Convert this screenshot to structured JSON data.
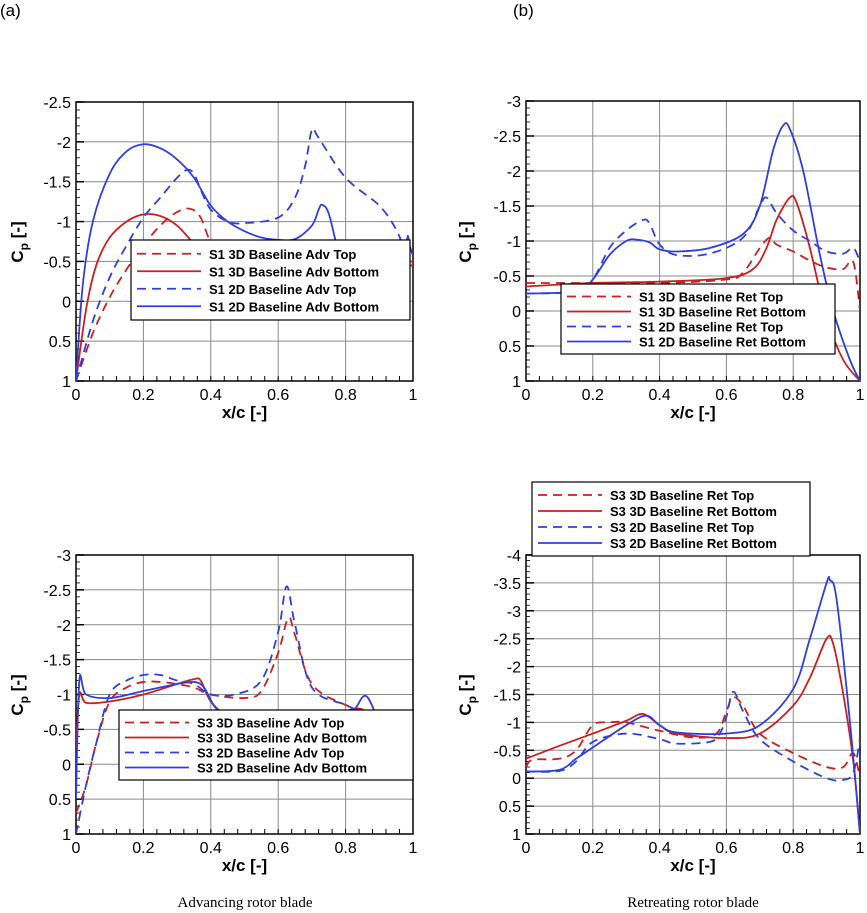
{
  "panel_tags": {
    "a": "(a)",
    "b": "(b)"
  },
  "captions": {
    "left": "Advancing rotor blade",
    "right": "Retreating rotor blade"
  },
  "colors": {
    "3D": "#cc1f1f",
    "2D": "#2f3fe0",
    "grid": "#888888"
  },
  "chart_data": [
    {
      "type": "line",
      "panel": "top-left",
      "xlabel": "x/c [-]",
      "ylabel_main": "C",
      "ylabel_sub": "p",
      "ylabel_unit": " [-]",
      "xlim": [
        0,
        1
      ],
      "ylim": [
        1,
        -2.5
      ],
      "y_reversed": true,
      "grid": true,
      "legend": "bottom-right",
      "xticks": [
        "0",
        "0.2",
        "0.4",
        "0.6",
        "0.8",
        "1"
      ],
      "yticks": [
        "-2.5",
        "-2",
        "-1.5",
        "-1",
        "-0.5",
        "0",
        "0.5",
        "1"
      ],
      "series": [
        {
          "name": "S1 3D Baseline Adv Top",
          "color": "#cc1f1f",
          "dashed": true,
          "x": [
            0,
            0.05,
            0.1,
            0.15,
            0.2,
            0.25,
            0.3,
            0.34,
            0.37,
            0.4,
            0.45,
            0.5,
            0.6,
            0.65,
            0.7,
            0.72,
            0.75,
            0.8,
            0.9,
            1.0
          ],
          "y": [
            1,
            0.4,
            -0.05,
            -0.4,
            -0.7,
            -0.95,
            -1.12,
            -1.16,
            -1.05,
            -0.75,
            -0.58,
            -0.52,
            -0.5,
            -0.55,
            -0.62,
            -0.65,
            -0.52,
            -0.47,
            -0.47,
            -0.5
          ]
        },
        {
          "name": "S1 3D Baseline Adv Bottom",
          "color": "#cc1f1f",
          "dashed": false,
          "x": [
            0,
            0.03,
            0.06,
            0.1,
            0.15,
            0.2,
            0.25,
            0.3,
            0.35,
            0.4,
            0.45,
            0.6,
            0.8,
            1.0
          ],
          "y": [
            1,
            0.1,
            -0.45,
            -0.8,
            -1.0,
            -1.09,
            -1.07,
            -0.95,
            -0.72,
            -0.5,
            -0.44,
            -0.42,
            -0.45,
            -0.45
          ]
        },
        {
          "name": "S1 2D Baseline Adv Top",
          "color": "#2f3fe0",
          "dashed": true,
          "x": [
            0,
            0.05,
            0.1,
            0.15,
            0.2,
            0.25,
            0.3,
            0.33,
            0.35,
            0.37,
            0.4,
            0.45,
            0.5,
            0.6,
            0.65,
            0.68,
            0.7,
            0.72,
            0.8,
            0.9,
            0.95,
            0.98,
            1.0
          ],
          "y": [
            1,
            0.25,
            -0.3,
            -0.7,
            -1.05,
            -1.3,
            -1.55,
            -1.65,
            -1.6,
            -1.4,
            -1.15,
            -1.0,
            -0.98,
            -1.05,
            -1.3,
            -1.7,
            -2.15,
            -2.05,
            -1.55,
            -1.2,
            -0.9,
            -0.6,
            -0.55
          ]
        },
        {
          "name": "S1 2D Baseline Adv Bottom",
          "color": "#2f3fe0",
          "dashed": false,
          "x": [
            0,
            0.02,
            0.05,
            0.1,
            0.15,
            0.2,
            0.25,
            0.3,
            0.35,
            0.4,
            0.45,
            0.5,
            0.55,
            0.6,
            0.65,
            0.7,
            0.72,
            0.73,
            0.75,
            0.78,
            0.8,
            0.9,
            0.95,
            0.98,
            0.985,
            0.99,
            1.0
          ],
          "y": [
            1,
            -0.2,
            -1.0,
            -1.6,
            -1.88,
            -1.97,
            -1.92,
            -1.78,
            -1.55,
            -1.2,
            -1.0,
            -0.88,
            -0.8,
            -0.77,
            -0.78,
            -0.95,
            -1.15,
            -1.21,
            -1.1,
            -0.6,
            -0.46,
            -0.44,
            -0.5,
            -0.75,
            -0.82,
            -0.7,
            -0.57
          ]
        }
      ]
    },
    {
      "type": "line",
      "panel": "top-right",
      "xlabel": "x/c [-]",
      "ylabel_main": "C",
      "ylabel_sub": "p",
      "ylabel_unit": " [-]",
      "xlim": [
        0,
        1
      ],
      "ylim": [
        1,
        -3
      ],
      "y_reversed": true,
      "grid": true,
      "legend": "bottom-right",
      "xticks": [
        "0",
        "0.2",
        "0.4",
        "0.6",
        "0.8",
        "1"
      ],
      "yticks": [
        "-3",
        "-2.5",
        "-2",
        "-1.5",
        "-1",
        "-0.5",
        "0",
        "0.5",
        "1"
      ],
      "series": [
        {
          "name": "S1 3D Baseline Ret Top",
          "color": "#cc1f1f",
          "dashed": true,
          "x": [
            0,
            0.2,
            0.4,
            0.6,
            0.65,
            0.7,
            0.73,
            0.75,
            0.8,
            0.85,
            0.9,
            0.95,
            0.98,
            1.0
          ],
          "y": [
            -0.4,
            -0.4,
            -0.4,
            -0.45,
            -0.55,
            -0.9,
            -1.05,
            -0.95,
            -0.85,
            -0.72,
            -0.62,
            -0.6,
            -0.7,
            0.0
          ]
        },
        {
          "name": "S1 3D Baseline Ret Bottom",
          "color": "#cc1f1f",
          "dashed": false,
          "x": [
            0,
            0.2,
            0.4,
            0.6,
            0.68,
            0.72,
            0.75,
            0.79,
            0.81,
            0.85,
            0.9,
            0.95,
            1.0
          ],
          "y": [
            -0.35,
            -0.4,
            -0.42,
            -0.47,
            -0.6,
            -0.9,
            -1.3,
            -1.62,
            -1.55,
            -0.9,
            0.1,
            0.7,
            1.0
          ]
        },
        {
          "name": "S1 2D Baseline Ret Top",
          "color": "#2f3fe0",
          "dashed": true,
          "x": [
            0,
            0.15,
            0.2,
            0.25,
            0.3,
            0.35,
            0.37,
            0.4,
            0.45,
            0.55,
            0.65,
            0.7,
            0.72,
            0.75,
            0.8,
            0.85,
            0.9,
            0.95,
            0.98,
            1.0
          ],
          "y": [
            -0.25,
            -0.28,
            -0.45,
            -0.9,
            -1.15,
            -1.3,
            -1.25,
            -0.95,
            -0.8,
            -0.82,
            -1.05,
            -1.5,
            -1.62,
            -1.4,
            -1.15,
            -1.0,
            -0.85,
            -0.82,
            -0.9,
            -0.7
          ]
        },
        {
          "name": "S1 2D Baseline Ret Bottom",
          "color": "#2f3fe0",
          "dashed": false,
          "x": [
            0,
            0.15,
            0.2,
            0.25,
            0.3,
            0.33,
            0.37,
            0.4,
            0.45,
            0.55,
            0.65,
            0.7,
            0.74,
            0.77,
            0.79,
            0.83,
            0.88,
            0.92,
            0.97,
            1.0
          ],
          "y": [
            -0.25,
            -0.28,
            -0.45,
            -0.8,
            -1.0,
            -1.02,
            -0.98,
            -0.88,
            -0.85,
            -0.9,
            -1.1,
            -1.5,
            -2.3,
            -2.65,
            -2.6,
            -2.0,
            -0.8,
            0.0,
            0.7,
            1.0
          ]
        }
      ]
    },
    {
      "type": "line",
      "panel": "bottom-left",
      "xlabel": "x/c [-]",
      "ylabel_main": "C",
      "ylabel_sub": "p",
      "ylabel_unit": " [-]",
      "xlim": [
        0,
        1
      ],
      "ylim": [
        1,
        -3
      ],
      "y_reversed": true,
      "grid": true,
      "legend": "bottom-right",
      "xticks": [
        "0",
        "0.2",
        "0.4",
        "0.6",
        "0.8",
        "1"
      ],
      "yticks": [
        "-3",
        "-2.5",
        "-2",
        "-1.5",
        "-1",
        "-0.5",
        "0",
        "0.5",
        "1"
      ],
      "series": [
        {
          "name": "S3 3D Baseline Adv Top",
          "color": "#cc1f1f",
          "dashed": true,
          "x": [
            0,
            0.03,
            0.06,
            0.1,
            0.15,
            0.2,
            0.25,
            0.3,
            0.35,
            0.4,
            0.5,
            0.55,
            0.6,
            0.63,
            0.65,
            0.7,
            0.8,
            0.9,
            0.95,
            1.0
          ],
          "y": [
            0.7,
            0.3,
            -0.3,
            -0.9,
            -1.1,
            -1.18,
            -1.18,
            -1.15,
            -1.1,
            -1.0,
            -0.95,
            -1.05,
            -1.6,
            -2.1,
            -1.85,
            -1.15,
            -0.85,
            -0.7,
            -0.5,
            -0.3
          ]
        },
        {
          "name": "S3 3D Baseline Adv Bottom",
          "color": "#cc1f1f",
          "dashed": false,
          "x": [
            0,
            0.01,
            0.03,
            0.1,
            0.2,
            0.3,
            0.35,
            0.37,
            0.4,
            0.45,
            0.55,
            0.65,
            0.75,
            0.83,
            0.87,
            0.92,
            0.95,
            0.98,
            1.0
          ],
          "y": [
            -0.2,
            -1.0,
            -0.88,
            -0.9,
            -1.0,
            -1.15,
            -1.22,
            -1.2,
            -0.9,
            -0.7,
            -0.55,
            -0.5,
            -0.65,
            -0.8,
            -0.7,
            -0.35,
            -0.28,
            -0.25,
            -0.2
          ]
        },
        {
          "name": "S3 2D Baseline Adv Top",
          "color": "#2f3fe0",
          "dashed": true,
          "x": [
            0,
            0.03,
            0.06,
            0.1,
            0.15,
            0.2,
            0.25,
            0.3,
            0.35,
            0.4,
            0.47,
            0.55,
            0.6,
            0.625,
            0.65,
            0.7,
            0.8,
            0.9,
            0.97,
            1.0
          ],
          "y": [
            1.0,
            0.3,
            -0.3,
            -1.0,
            -1.2,
            -1.28,
            -1.28,
            -1.2,
            -1.15,
            -1.0,
            -1.0,
            -1.2,
            -1.9,
            -2.55,
            -2.0,
            -1.1,
            -0.85,
            -0.65,
            -0.65,
            -0.7
          ]
        },
        {
          "name": "S3 2D Baseline Adv Bottom",
          "color": "#2f3fe0",
          "dashed": false,
          "x": [
            0,
            0.01,
            0.03,
            0.1,
            0.2,
            0.3,
            0.35,
            0.38,
            0.42,
            0.5,
            0.6,
            0.65,
            0.75,
            0.82,
            0.86,
            0.9,
            0.93,
            0.97,
            1.0
          ],
          "y": [
            0.5,
            -1.2,
            -1.0,
            -0.95,
            -1.05,
            -1.15,
            -1.18,
            -1.1,
            -0.78,
            -0.6,
            -0.45,
            -0.4,
            -0.55,
            -0.75,
            -0.98,
            -0.6,
            -0.35,
            -0.35,
            -0.6
          ]
        }
      ]
    },
    {
      "type": "line",
      "panel": "bottom-right",
      "xlabel": "x/c [-]",
      "ylabel_main": "C",
      "ylabel_sub": "p",
      "ylabel_unit": " [-]",
      "xlim": [
        0,
        1
      ],
      "ylim": [
        1,
        -4
      ],
      "y_reversed": true,
      "grid": true,
      "legend": "top-left",
      "xticks": [
        "0",
        "0.2",
        "0.4",
        "0.6",
        "0.8",
        "1"
      ],
      "yticks": [
        "-4",
        "-3.5",
        "-3",
        "-2.5",
        "-2",
        "-1.5",
        "-1",
        "-0.5",
        "0",
        "0.5",
        "1"
      ],
      "series": [
        {
          "name": "S3 3D Baseline Ret Top",
          "color": "#cc1f1f",
          "dashed": true,
          "x": [
            0,
            0.02,
            0.1,
            0.15,
            0.2,
            0.25,
            0.3,
            0.4,
            0.5,
            0.57,
            0.6,
            0.62,
            0.65,
            0.7,
            0.8,
            0.9,
            0.95,
            0.98,
            1.0
          ],
          "y": [
            -0.2,
            -0.33,
            -0.35,
            -0.5,
            -0.95,
            -1.0,
            -1.0,
            -0.85,
            -0.73,
            -0.8,
            -1.2,
            -1.45,
            -1.3,
            -0.8,
            -0.45,
            -0.2,
            -0.2,
            -0.45,
            0.0
          ]
        },
        {
          "name": "S3 3D Baseline Ret Bottom",
          "color": "#cc1f1f",
          "dashed": false,
          "x": [
            0,
            0.1,
            0.2,
            0.3,
            0.35,
            0.4,
            0.45,
            0.6,
            0.7,
            0.8,
            0.85,
            0.9,
            0.92,
            0.95,
            0.98,
            1.0
          ],
          "y": [
            -0.35,
            -0.58,
            -0.8,
            -1.03,
            -1.15,
            -0.95,
            -0.8,
            -0.72,
            -0.8,
            -1.3,
            -1.8,
            -2.5,
            -2.4,
            -1.5,
            -0.3,
            1.0
          ]
        },
        {
          "name": "S3 2D Baseline Ret Top",
          "color": "#2f3fe0",
          "dashed": true,
          "x": [
            0,
            0.1,
            0.15,
            0.2,
            0.3,
            0.4,
            0.45,
            0.55,
            0.58,
            0.6,
            0.62,
            0.65,
            0.7,
            0.8,
            0.9,
            0.95,
            0.98,
            1.0
          ],
          "y": [
            -0.12,
            -0.13,
            -0.3,
            -0.65,
            -0.8,
            -0.7,
            -0.62,
            -0.65,
            -0.8,
            -1.1,
            -1.55,
            -1.2,
            -0.7,
            -0.3,
            0.0,
            0.03,
            -0.1,
            -0.7
          ]
        },
        {
          "name": "S3 2D Baseline Ret Bottom",
          "color": "#2f3fe0",
          "dashed": false,
          "x": [
            0,
            0.1,
            0.15,
            0.2,
            0.3,
            0.36,
            0.4,
            0.45,
            0.6,
            0.7,
            0.8,
            0.85,
            0.9,
            0.91,
            0.93,
            0.97,
            1.0
          ],
          "y": [
            -0.12,
            -0.15,
            -0.35,
            -0.55,
            -0.95,
            -1.12,
            -0.95,
            -0.82,
            -0.8,
            -0.95,
            -1.6,
            -2.5,
            -3.5,
            -3.55,
            -3.2,
            -1.0,
            1.0
          ]
        }
      ]
    }
  ]
}
